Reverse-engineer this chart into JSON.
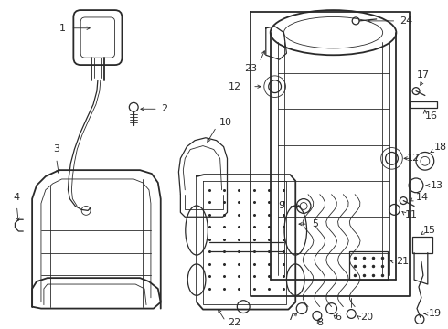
{
  "bg_color": "#ffffff",
  "line_color": "#2a2a2a",
  "label_color": "#000000",
  "figsize": [
    4.9,
    3.6
  ],
  "dpi": 100,
  "label_fontsize": 8.0,
  "lw_main": 1.3,
  "lw_med": 0.9,
  "lw_thin": 0.6
}
